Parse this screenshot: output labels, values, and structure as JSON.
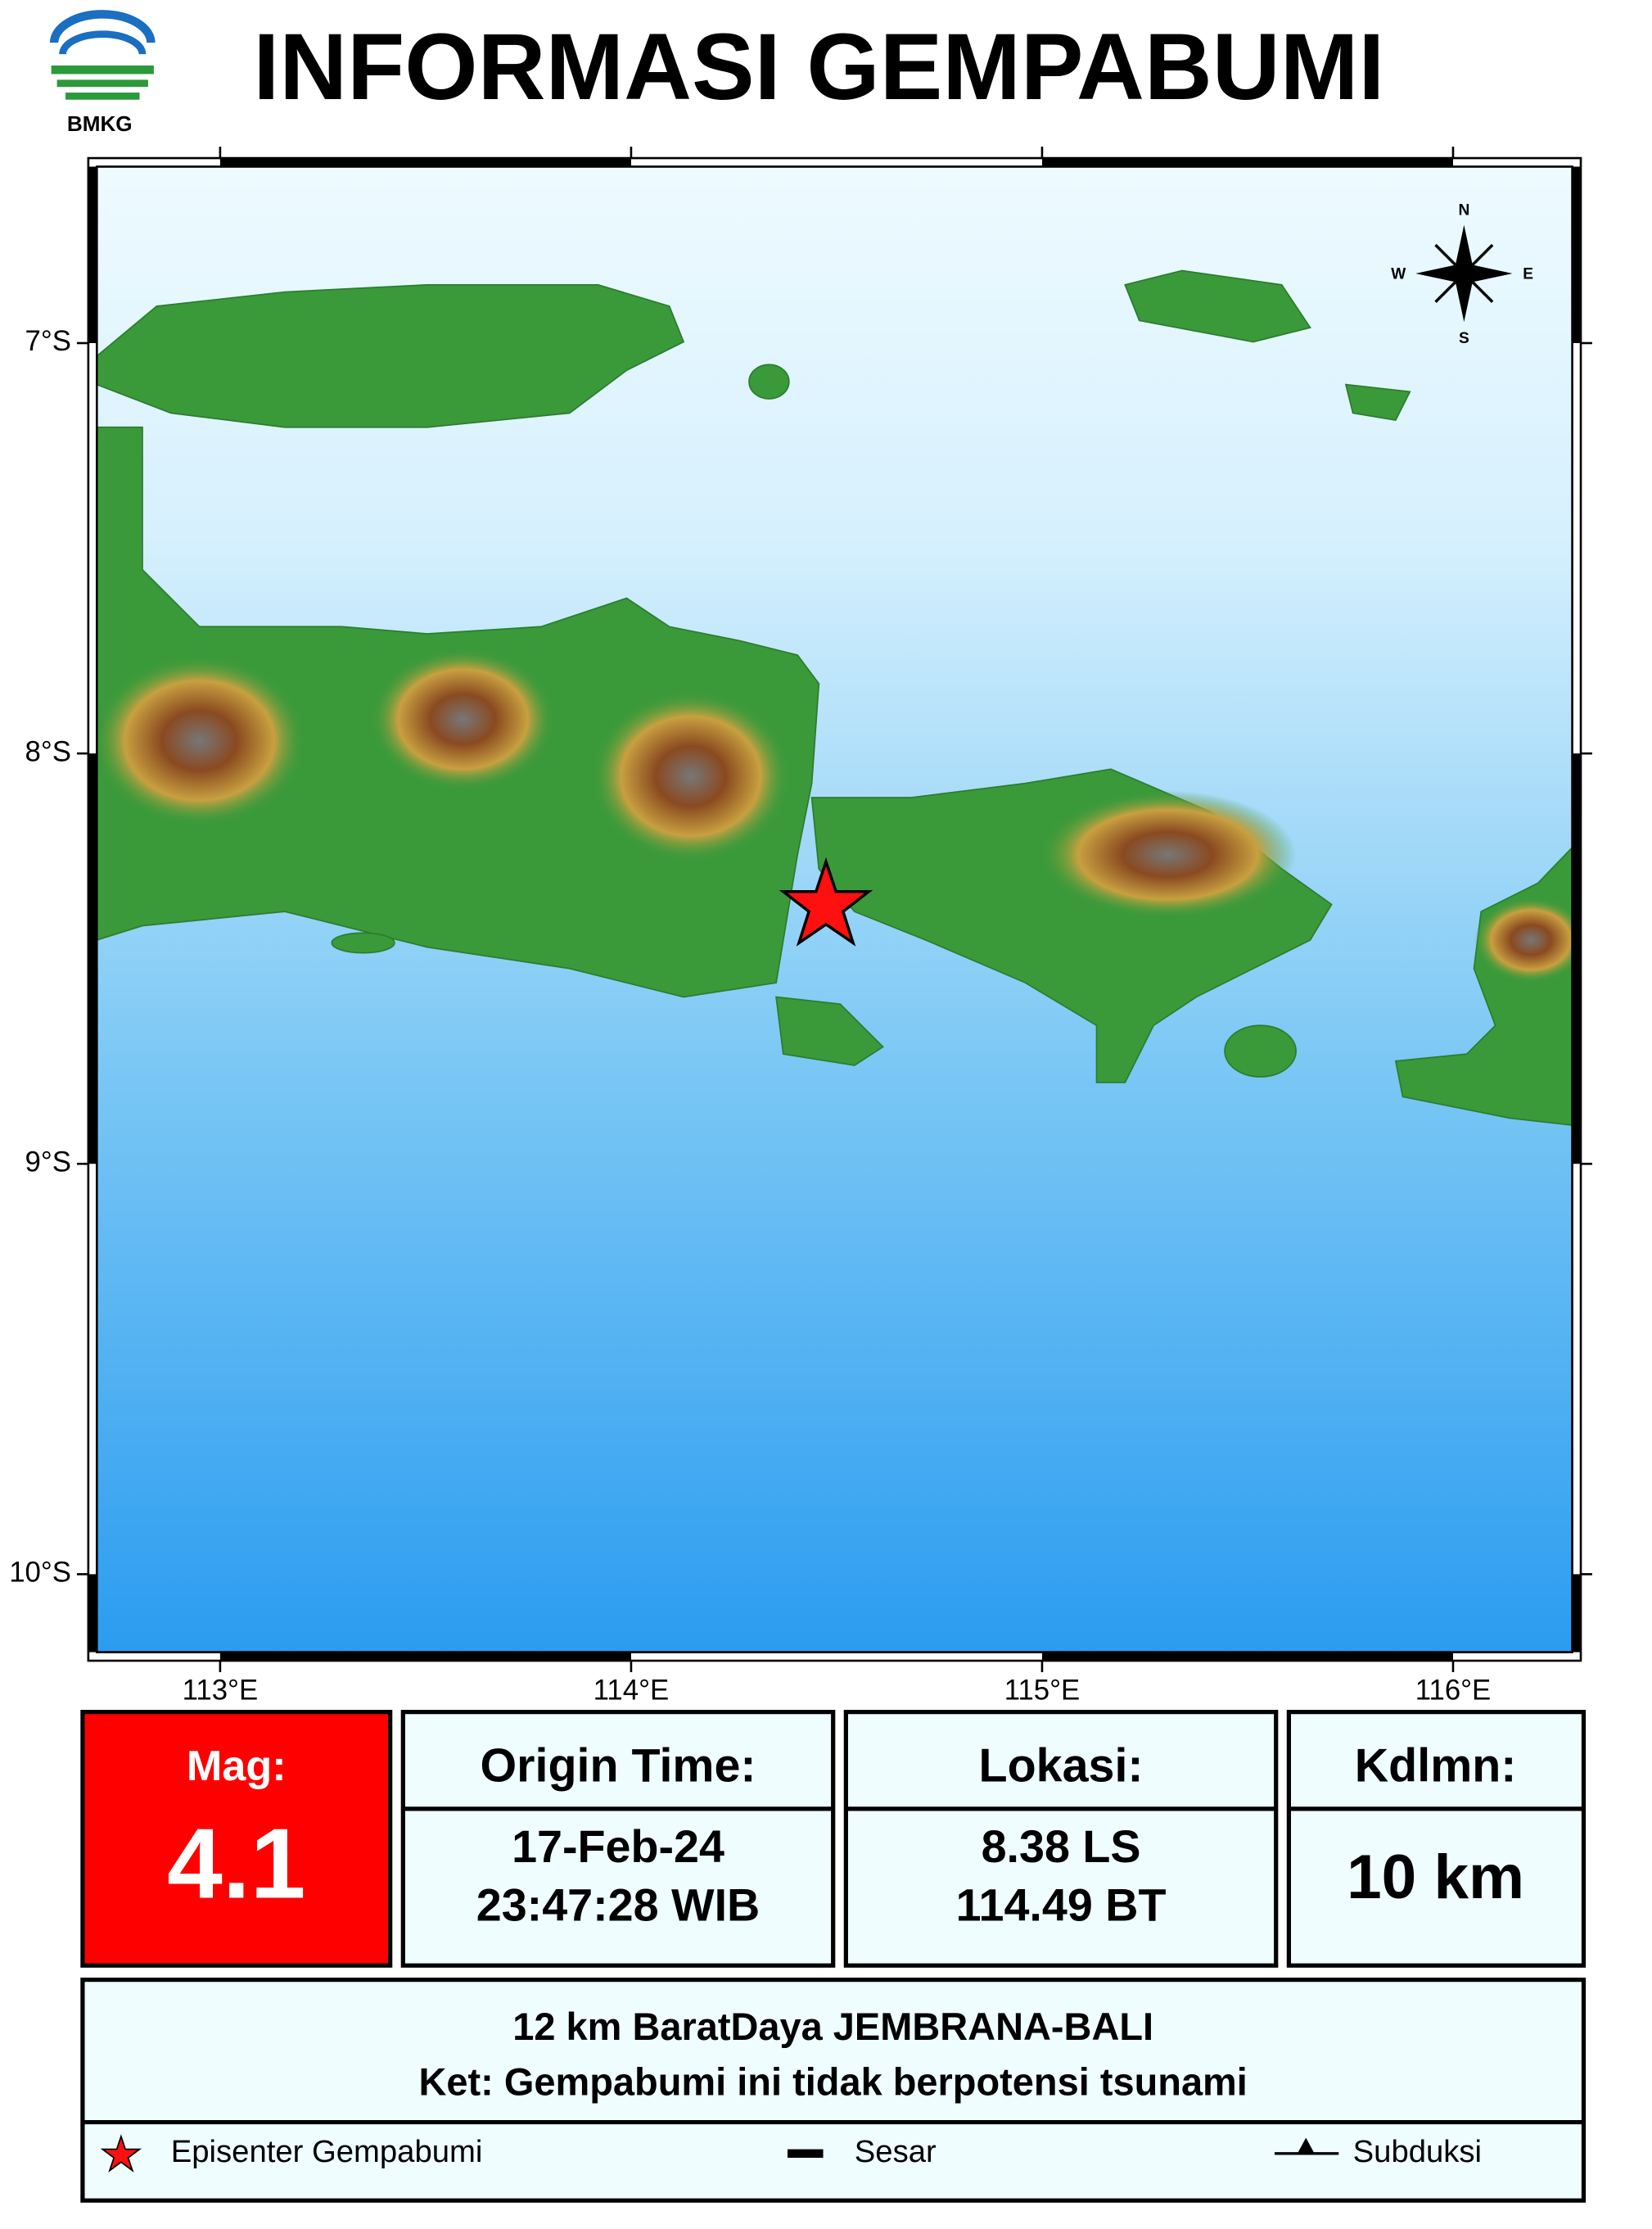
{
  "header": {
    "logo": "BMKG",
    "title": "INFORMASI GEMPABUMI"
  },
  "map": {
    "xlim": [
      112.7,
      116.29
    ],
    "ylim": [
      -10.19,
      -6.57
    ],
    "xticks": [
      {
        "value": 113,
        "label": "113°E"
      },
      {
        "value": 114,
        "label": "114°E"
      },
      {
        "value": 115,
        "label": "115°E"
      },
      {
        "value": 116,
        "label": "116°E"
      }
    ],
    "yticks": [
      {
        "value": -7,
        "label": "7°S"
      },
      {
        "value": -8,
        "label": "8°S"
      },
      {
        "value": -9,
        "label": "9°S"
      },
      {
        "value": -10,
        "label": "10°S"
      }
    ],
    "compass": {
      "north": "N",
      "south": "S",
      "east": "E",
      "west": "W"
    }
  },
  "info": {
    "magnitude": {
      "label": "Mag:",
      "value": "4.1"
    },
    "origin_time": {
      "label": "Origin Time:",
      "date": "17-Feb-24",
      "time": "23:47:28 WIB"
    },
    "location": {
      "label": "Lokasi:",
      "latitude": "8.38 LS",
      "longitude": "114.49 BT"
    },
    "depth": {
      "label": "Kdlmn:",
      "value": "10 km"
    },
    "description": [
      "12 km BaratDaya JEMBRANA-BALI",
      "Ket: Gempabumi ini tidak berpotensi tsunami"
    ]
  },
  "legend": [
    "Episenter Gempabumi",
    "Sesar",
    "Subduksi"
  ]
}
